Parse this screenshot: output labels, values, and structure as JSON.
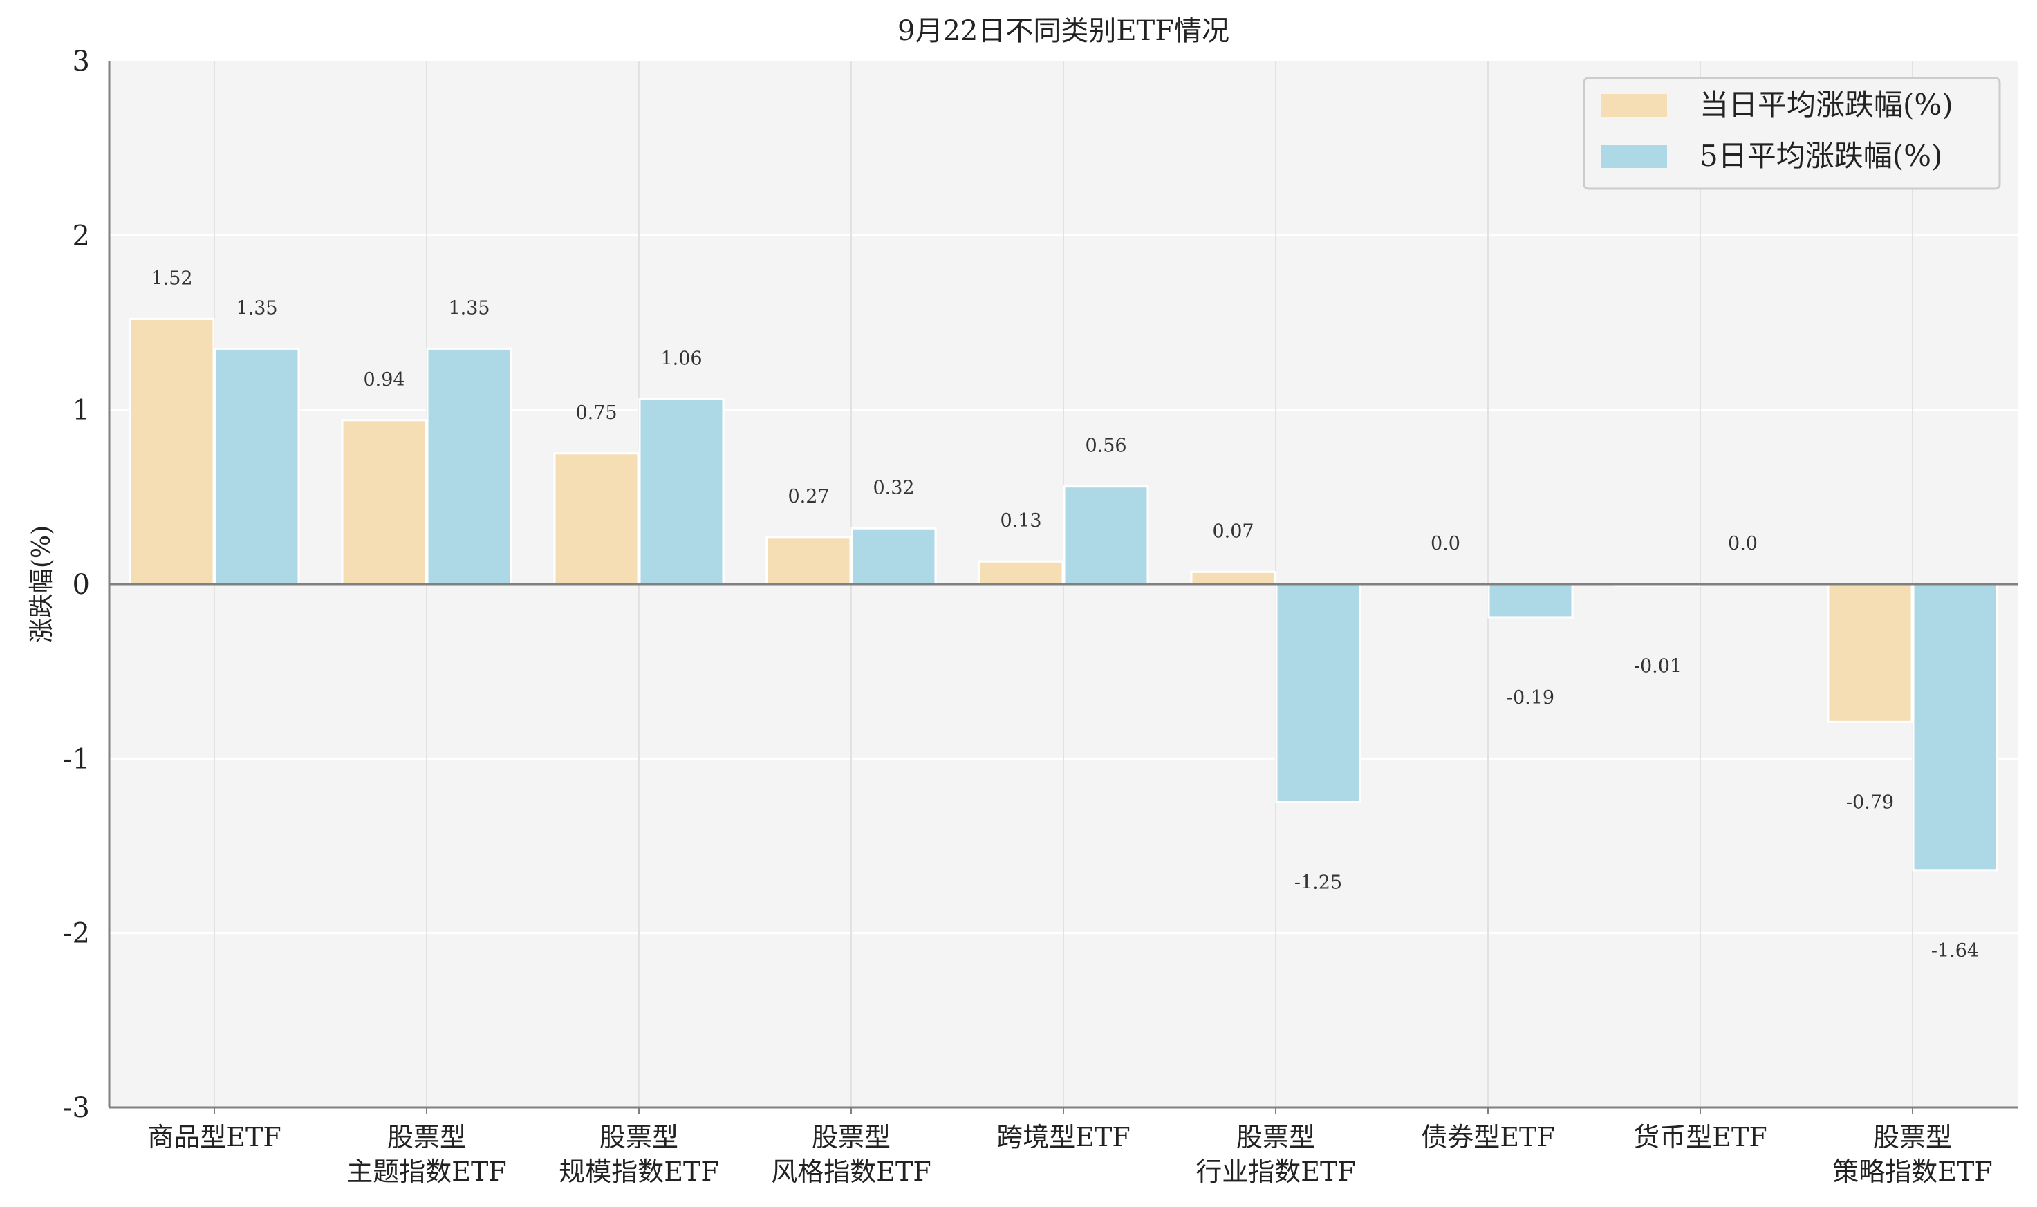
{
  "chart_data": {
    "type": "bar",
    "title": "9月22日不同类别ETF情况",
    "xlabel": "",
    "ylabel": "涨跌幅(%)",
    "ylim": [
      -3,
      3
    ],
    "yticks": [
      3,
      2,
      1,
      0,
      -1,
      -2,
      -3
    ],
    "grid": true,
    "legend_position": "top-right",
    "categories": [
      [
        "商品型ETF"
      ],
      [
        "股票型",
        "主题指数ETF"
      ],
      [
        "股票型",
        "规模指数ETF"
      ],
      [
        "股票型",
        "风格指数ETF"
      ],
      [
        "跨境型ETF"
      ],
      [
        "股票型",
        "行业指数ETF"
      ],
      [
        "债券型ETF"
      ],
      [
        "货币型ETF"
      ],
      [
        "股票型",
        "策略指数ETF"
      ]
    ],
    "series": [
      {
        "name": "当日平均涨跌幅(%)",
        "color": "#f5deb3",
        "values": [
          1.52,
          0.94,
          0.75,
          0.27,
          0.13,
          0.07,
          0.0,
          -0.01,
          -0.79
        ],
        "labels": [
          "1.52",
          "0.94",
          "0.75",
          "0.27",
          "0.13",
          "0.07",
          "0.0",
          "-0.01",
          "-0.79"
        ]
      },
      {
        "name": "5日平均涨跌幅(%)",
        "color": "#add8e6",
        "values": [
          1.35,
          1.35,
          1.06,
          0.32,
          0.56,
          -1.25,
          -0.19,
          0.0,
          -1.64
        ],
        "labels": [
          "1.35",
          "1.35",
          "1.06",
          "0.32",
          "0.56",
          "-1.25",
          "-0.19",
          "0.0",
          "-1.64"
        ]
      }
    ]
  }
}
